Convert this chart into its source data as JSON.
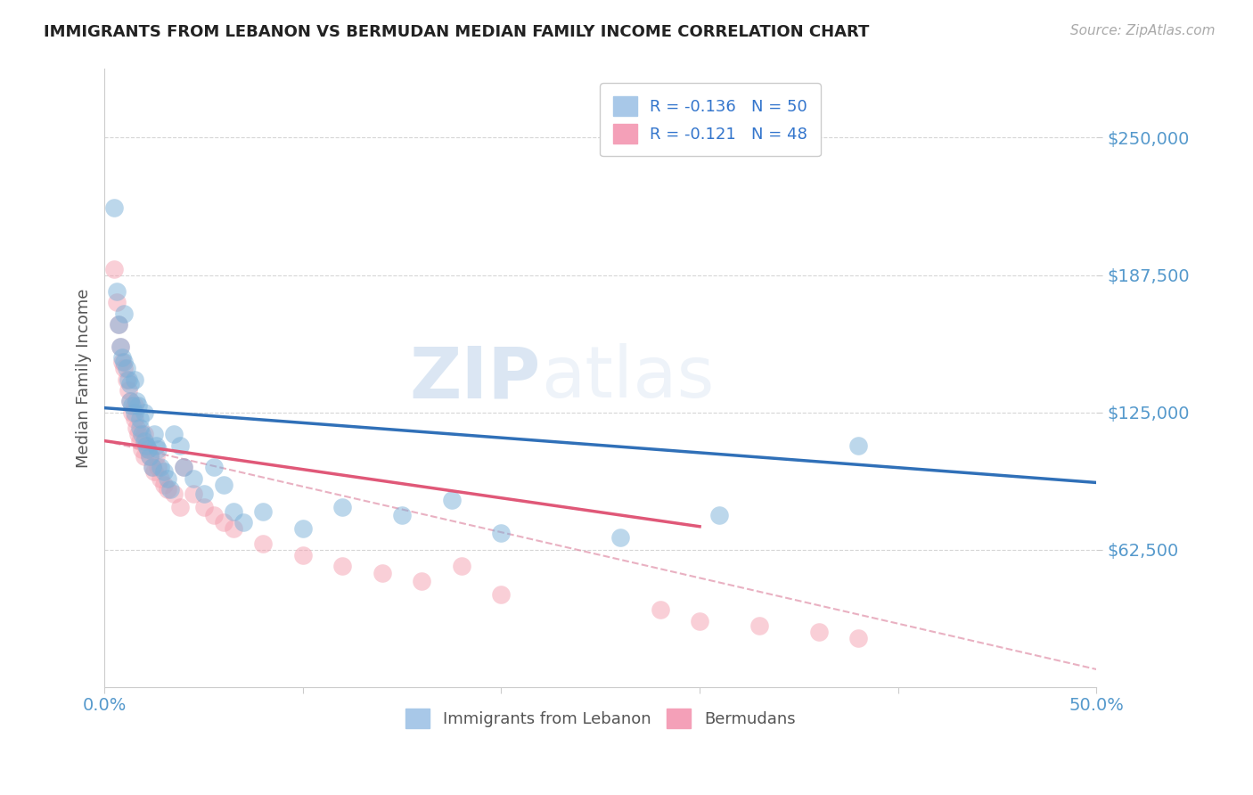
{
  "title": "IMMIGRANTS FROM LEBANON VS BERMUDAN MEDIAN FAMILY INCOME CORRELATION CHART",
  "source_text": "Source: ZipAtlas.com",
  "ylabel": "Median Family Income",
  "xlim": [
    0.0,
    0.5
  ],
  "ylim": [
    0,
    281250
  ],
  "yticks": [
    62500,
    125000,
    187500,
    250000
  ],
  "ytick_labels": [
    "$62,500",
    "$125,000",
    "$187,500",
    "$250,000"
  ],
  "xticks": [
    0.0,
    0.1,
    0.2,
    0.3,
    0.4,
    0.5
  ],
  "xtick_labels": [
    "0.0%",
    "",
    "",
    "",
    "",
    "50.0%"
  ],
  "series1_color": "#7ab0d8",
  "series2_color": "#f4a0b0",
  "trendline1_color": "#3070b8",
  "trendline2_color": "#e05878",
  "trendline2_dashed_color": "#e090a8",
  "grid_color": "#cccccc",
  "title_color": "#222222",
  "axis_label_color": "#555555",
  "ytick_color": "#5599cc",
  "xtick_color": "#5599cc",
  "scatter1_x": [
    0.005,
    0.006,
    0.007,
    0.008,
    0.009,
    0.01,
    0.01,
    0.011,
    0.012,
    0.013,
    0.013,
    0.014,
    0.015,
    0.015,
    0.016,
    0.017,
    0.018,
    0.018,
    0.019,
    0.02,
    0.02,
    0.021,
    0.022,
    0.023,
    0.024,
    0.025,
    0.026,
    0.027,
    0.028,
    0.03,
    0.032,
    0.033,
    0.035,
    0.038,
    0.04,
    0.045,
    0.05,
    0.055,
    0.06,
    0.065,
    0.07,
    0.08,
    0.1,
    0.12,
    0.15,
    0.175,
    0.2,
    0.26,
    0.31,
    0.38
  ],
  "scatter1_y": [
    218000,
    180000,
    165000,
    155000,
    150000,
    148000,
    170000,
    145000,
    140000,
    138000,
    130000,
    128000,
    125000,
    140000,
    130000,
    128000,
    122000,
    118000,
    115000,
    112000,
    125000,
    110000,
    108000,
    105000,
    100000,
    115000,
    110000,
    108000,
    100000,
    98000,
    95000,
    90000,
    115000,
    110000,
    100000,
    95000,
    88000,
    100000,
    92000,
    80000,
    75000,
    80000,
    72000,
    82000,
    78000,
    85000,
    70000,
    68000,
    78000,
    110000
  ],
  "scatter2_x": [
    0.005,
    0.006,
    0.007,
    0.008,
    0.009,
    0.01,
    0.011,
    0.012,
    0.013,
    0.014,
    0.015,
    0.015,
    0.016,
    0.017,
    0.018,
    0.019,
    0.02,
    0.02,
    0.021,
    0.022,
    0.023,
    0.024,
    0.025,
    0.026,
    0.027,
    0.028,
    0.03,
    0.032,
    0.035,
    0.038,
    0.04,
    0.045,
    0.05,
    0.055,
    0.06,
    0.065,
    0.08,
    0.1,
    0.12,
    0.14,
    0.16,
    0.18,
    0.2,
    0.28,
    0.3,
    0.33,
    0.36,
    0.38
  ],
  "scatter2_y": [
    190000,
    175000,
    165000,
    155000,
    148000,
    145000,
    140000,
    135000,
    130000,
    125000,
    122000,
    128000,
    118000,
    115000,
    112000,
    108000,
    105000,
    115000,
    110000,
    108000,
    105000,
    100000,
    98000,
    105000,
    100000,
    95000,
    92000,
    90000,
    88000,
    82000,
    100000,
    88000,
    82000,
    78000,
    75000,
    72000,
    65000,
    60000,
    55000,
    52000,
    48000,
    55000,
    42000,
    35000,
    30000,
    28000,
    25000,
    22000
  ],
  "trendline1_x0": 0.0,
  "trendline1_x1": 0.5,
  "trendline1_y0": 127000,
  "trendline1_y1": 93000,
  "trendline2_solid_x0": 0.0,
  "trendline2_solid_x1": 0.3,
  "trendline2_solid_y0": 112000,
  "trendline2_solid_y1": 73000,
  "trendline2_dashed_x0": 0.0,
  "trendline2_dashed_x1": 0.5,
  "trendline2_dashed_y0": 112000,
  "trendline2_dashed_y1": 8000
}
